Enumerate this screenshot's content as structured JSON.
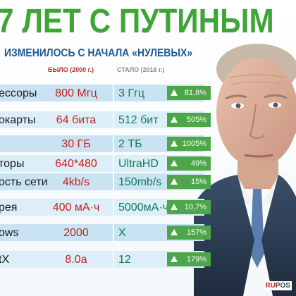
{
  "title": "7 ЛЕТ С ПУТИНЫМ",
  "subtitle": "ИЗМЕНИЛОСЬ С НАЧАЛА «НУЛЕВЫХ»",
  "columns": {
    "was": "БЫЛО (2000 г.)",
    "now": "СТАЛО (2016 г.)"
  },
  "rows": [
    {
      "label": "ессоры",
      "was": "800 Мгц",
      "now": "3 Ггц",
      "change": "81,8%"
    },
    {
      "label": "окарты",
      "was": "64 бита",
      "now": "512 бит",
      "change": "505%"
    },
    {
      "label": "",
      "was": "30 ГБ",
      "now": "2 ТБ",
      "change": "1005%"
    },
    {
      "label": "торы",
      "was": "640*480",
      "now": "UltraHD",
      "change": "49%"
    },
    {
      "label": "ость сети",
      "was": "4kb/s",
      "now": "150mb/s",
      "change": "15%"
    },
    {
      "label": "рея",
      "was": "400 мА·ч",
      "now": "5000мА·ч",
      "change": "10,7%"
    },
    {
      "label": "ows",
      "was": "2000",
      "now": "X",
      "change": "157%"
    },
    {
      "label": "tX",
      "was": "8.0a",
      "now": "12",
      "change": "179%"
    }
  ],
  "watermark": {
    "part1": "RU",
    "part2": "POS"
  },
  "colors": {
    "title": "#3fa537",
    "subtitle": "#1a5b97",
    "was": "#c8231b",
    "now": "#0e7d52",
    "badge": "#4ea64a"
  }
}
